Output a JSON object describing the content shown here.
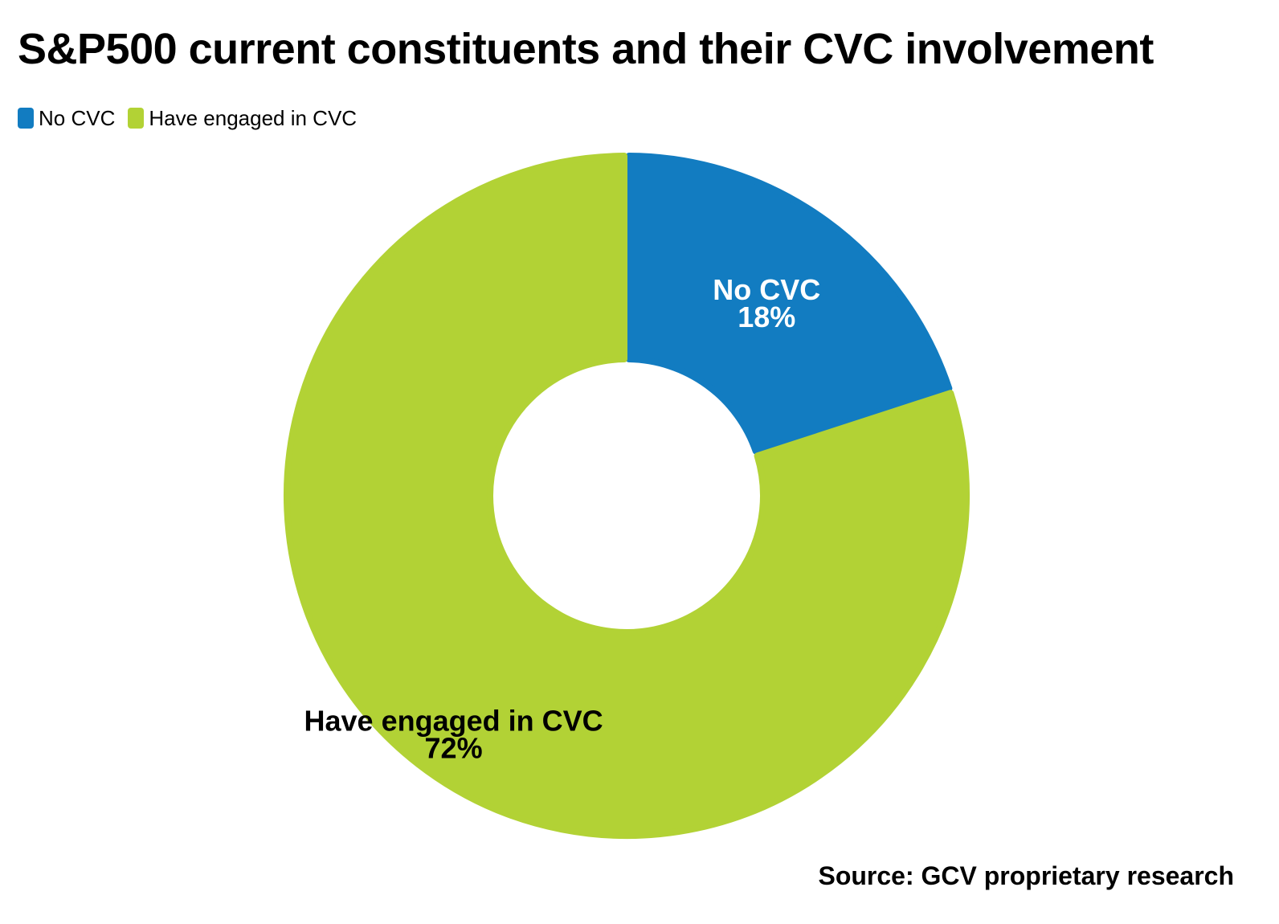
{
  "chart_data": {
    "type": "pie",
    "title": "S&P500 current constituents and their CVC involvement",
    "donut": true,
    "legend_position": "top-left",
    "categories": [
      "No CVC",
      "Have engaged in CVC"
    ],
    "values": [
      18,
      72
    ],
    "labels": [
      "18%",
      "72%"
    ],
    "colors": [
      "#127CC1",
      "#B2D235"
    ],
    "label_colors": [
      "#ffffff",
      "#000000"
    ],
    "source": "Source: GCV proprietary research"
  }
}
